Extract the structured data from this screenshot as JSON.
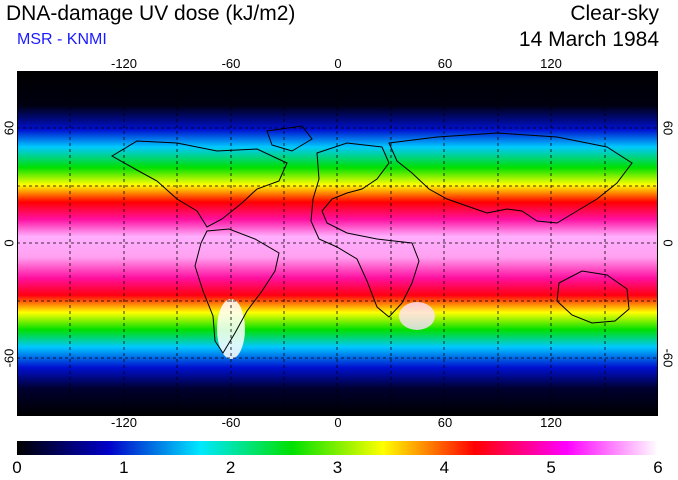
{
  "header": {
    "title": "DNA-damage UV dose (kJ/m2)",
    "source": "MSR - KNMI",
    "condition": "Clear-sky",
    "date": "14 March 1984"
  },
  "map": {
    "lon_range": [
      -180,
      180
    ],
    "lat_range": [
      -90,
      90
    ],
    "lon_ticks": [
      "-120",
      "-60",
      "0",
      "60",
      "120"
    ],
    "lat_ticks_left": [
      "60",
      "0",
      "-60"
    ],
    "lat_ticks_right": [
      "60",
      "0",
      "-60"
    ]
  },
  "colorbar": {
    "min": 0,
    "max": 6,
    "labels": [
      "0",
      "1",
      "2",
      "3",
      "4",
      "5",
      "6"
    ],
    "colors": [
      "#000000",
      "#0000c8",
      "#00e8ff",
      "#00e000",
      "#ffff00",
      "#ff0000",
      "#ff00ff",
      "#ffffff"
    ]
  }
}
